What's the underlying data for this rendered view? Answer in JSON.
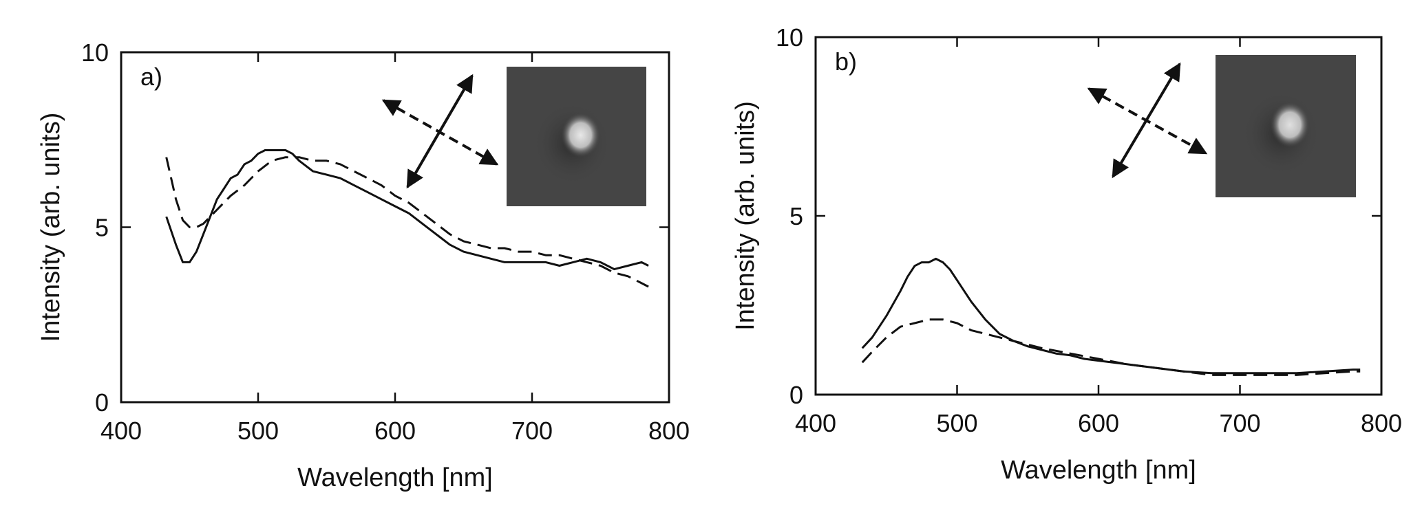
{
  "chart_data": [
    {
      "type": "line",
      "panel_label": "a)",
      "xlabel": "Wavelength [nm]",
      "ylabel": "Intensity (arb. units)",
      "xlim": [
        400,
        800
      ],
      "ylim": [
        0,
        10
      ],
      "xticks": [
        400,
        500,
        600,
        700,
        800
      ],
      "yticks": [
        0,
        5,
        10
      ],
      "series": [
        {
          "style": "solid",
          "x": [
            433,
            440,
            445,
            450,
            455,
            460,
            465,
            470,
            475,
            480,
            485,
            490,
            495,
            500,
            505,
            510,
            515,
            520,
            525,
            530,
            540,
            550,
            560,
            570,
            580,
            590,
            600,
            610,
            620,
            630,
            640,
            650,
            660,
            670,
            680,
            690,
            700,
            710,
            720,
            730,
            740,
            750,
            760,
            770,
            780,
            785
          ],
          "y": [
            5.3,
            4.5,
            4.0,
            4.0,
            4.3,
            4.8,
            5.3,
            5.8,
            6.1,
            6.4,
            6.5,
            6.8,
            6.9,
            7.1,
            7.2,
            7.2,
            7.2,
            7.2,
            7.1,
            6.9,
            6.6,
            6.5,
            6.4,
            6.2,
            6.0,
            5.8,
            5.6,
            5.4,
            5.1,
            4.8,
            4.5,
            4.3,
            4.2,
            4.1,
            4.0,
            4.0,
            4.0,
            4.0,
            3.9,
            4.0,
            4.1,
            4.0,
            3.8,
            3.9,
            4.0,
            3.9
          ]
        },
        {
          "style": "dashed",
          "x": [
            433,
            440,
            445,
            450,
            455,
            460,
            470,
            480,
            490,
            500,
            510,
            520,
            530,
            540,
            550,
            560,
            570,
            580,
            590,
            600,
            610,
            620,
            630,
            640,
            650,
            660,
            670,
            680,
            690,
            700,
            710,
            720,
            730,
            740,
            750,
            760,
            770,
            780,
            785
          ],
          "y": [
            7.0,
            5.8,
            5.2,
            5.0,
            5.0,
            5.1,
            5.5,
            5.9,
            6.2,
            6.6,
            6.9,
            7.0,
            7.0,
            6.9,
            6.9,
            6.8,
            6.6,
            6.4,
            6.2,
            5.9,
            5.7,
            5.4,
            5.1,
            4.8,
            4.6,
            4.5,
            4.4,
            4.4,
            4.3,
            4.3,
            4.2,
            4.2,
            4.1,
            4.0,
            3.9,
            3.7,
            3.6,
            3.4,
            3.3
          ]
        }
      ],
      "inset": {
        "type": "grayscale image of a bright particle",
        "background_color": "#454545",
        "spot_color": "#e8e8e8"
      }
    },
    {
      "type": "line",
      "panel_label": "b)",
      "xlabel": "Wavelength [nm]",
      "ylabel": "Intensity (arb. units)",
      "xlim": [
        400,
        800
      ],
      "ylim": [
        0,
        10
      ],
      "xticks": [
        400,
        500,
        600,
        700,
        800
      ],
      "yticks": [
        0,
        5,
        10
      ],
      "series": [
        {
          "style": "solid",
          "x": [
            433,
            440,
            450,
            460,
            465,
            470,
            475,
            480,
            485,
            490,
            495,
            500,
            510,
            520,
            530,
            540,
            550,
            560,
            570,
            580,
            590,
            600,
            620,
            640,
            660,
            680,
            700,
            720,
            740,
            760,
            780,
            785
          ],
          "y": [
            1.3,
            1.6,
            2.2,
            2.9,
            3.3,
            3.6,
            3.7,
            3.7,
            3.8,
            3.7,
            3.5,
            3.2,
            2.6,
            2.1,
            1.7,
            1.5,
            1.35,
            1.25,
            1.15,
            1.1,
            1.0,
            0.95,
            0.85,
            0.75,
            0.65,
            0.6,
            0.6,
            0.6,
            0.6,
            0.65,
            0.7,
            0.7
          ]
        },
        {
          "style": "dashed",
          "x": [
            433,
            440,
            450,
            460,
            470,
            480,
            490,
            500,
            510,
            520,
            530,
            540,
            550,
            560,
            580,
            600,
            620,
            640,
            660,
            680,
            700,
            720,
            740,
            760,
            780,
            785
          ],
          "y": [
            0.9,
            1.2,
            1.6,
            1.9,
            2.0,
            2.1,
            2.1,
            2.0,
            1.8,
            1.7,
            1.6,
            1.5,
            1.4,
            1.3,
            1.15,
            1.0,
            0.85,
            0.75,
            0.65,
            0.55,
            0.55,
            0.55,
            0.55,
            0.6,
            0.65,
            0.65
          ]
        }
      ],
      "inset": {
        "type": "grayscale image of a bright particle",
        "background_color": "#454545",
        "spot_color": "#e0e0e0"
      }
    }
  ]
}
